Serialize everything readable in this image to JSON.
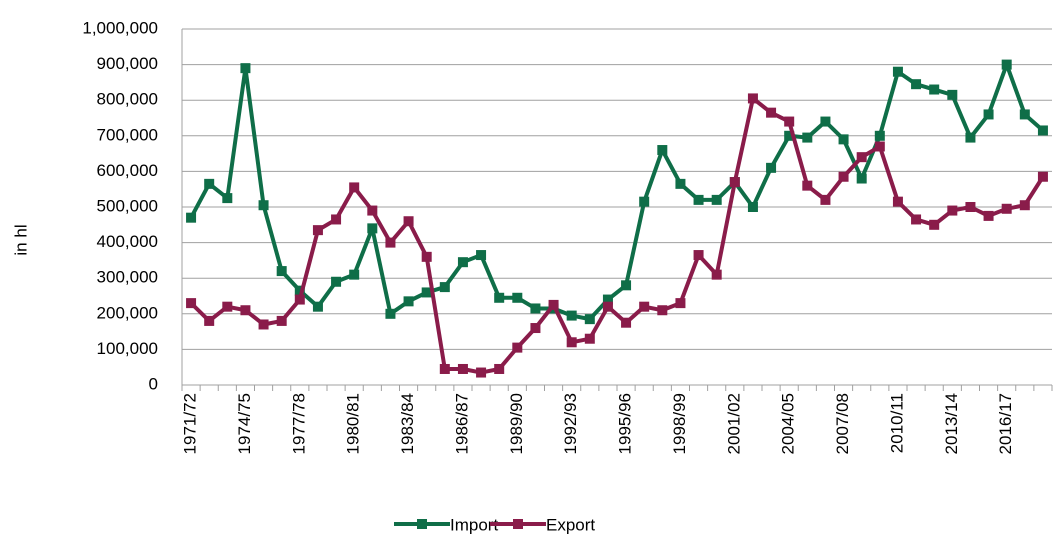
{
  "chart_data": {
    "type": "line",
    "y_label": "in hl",
    "categories": [
      "1971/72",
      null,
      null,
      "1974/75",
      null,
      null,
      "1977/78",
      null,
      null,
      "1980/81",
      null,
      null,
      "1983/84",
      null,
      null,
      "1986/87",
      null,
      null,
      "1989/90",
      null,
      null,
      "1992/93",
      null,
      null,
      "1995/96",
      null,
      null,
      "1998/99",
      null,
      null,
      "2001/02",
      null,
      null,
      "2004/05",
      null,
      null,
      "2007/08",
      null,
      null,
      "2010/11",
      null,
      null,
      "2013/14",
      null,
      null,
      "2016/17",
      null,
      null
    ],
    "series": [
      {
        "name": "Import",
        "color": "#0f6e48",
        "values": [
          470000,
          565000,
          525000,
          890000,
          505000,
          320000,
          265000,
          220000,
          290000,
          310000,
          440000,
          200000,
          235000,
          260000,
          275000,
          345000,
          365000,
          245000,
          245000,
          215000,
          215000,
          195000,
          185000,
          240000,
          280000,
          515000,
          660000,
          565000,
          520000,
          520000,
          570000,
          500000,
          610000,
          700000,
          695000,
          740000,
          690000,
          580000,
          700000,
          880000,
          845000,
          830000,
          815000,
          695000,
          760000,
          900000,
          760000,
          715000
        ]
      },
      {
        "name": "Export",
        "color": "#8a1c4a",
        "values": [
          230000,
          180000,
          220000,
          210000,
          170000,
          180000,
          240000,
          435000,
          465000,
          555000,
          490000,
          400000,
          460000,
          360000,
          45000,
          45000,
          35000,
          45000,
          105000,
          160000,
          225000,
          120000,
          130000,
          220000,
          175000,
          220000,
          210000,
          230000,
          365000,
          310000,
          570000,
          805000,
          765000,
          740000,
          560000,
          520000,
          585000,
          640000,
          670000,
          515000,
          465000,
          450000,
          490000,
          500000,
          475000,
          495000,
          505000,
          585000
        ]
      }
    ],
    "ylim": [
      0,
      1000000
    ],
    "yticks": [
      0,
      {
        "value": 100000,
        "label": "100,000"
      },
      {
        "value": 200000,
        "label": "200,000"
      },
      {
        "value": 300000,
        "label": "300,000"
      },
      {
        "value": 400000,
        "label": "400,000"
      },
      {
        "value": 500000,
        "label": "500,000"
      },
      {
        "value": 600000,
        "label": "600,000"
      },
      {
        "value": 700000,
        "label": "700,000"
      },
      {
        "value": 800000,
        "label": "800,000"
      },
      {
        "value": 900000,
        "label": "900,000"
      },
      {
        "value": 1000000,
        "label": "1,000,000"
      }
    ],
    "grid": true,
    "legend": "bottom"
  }
}
